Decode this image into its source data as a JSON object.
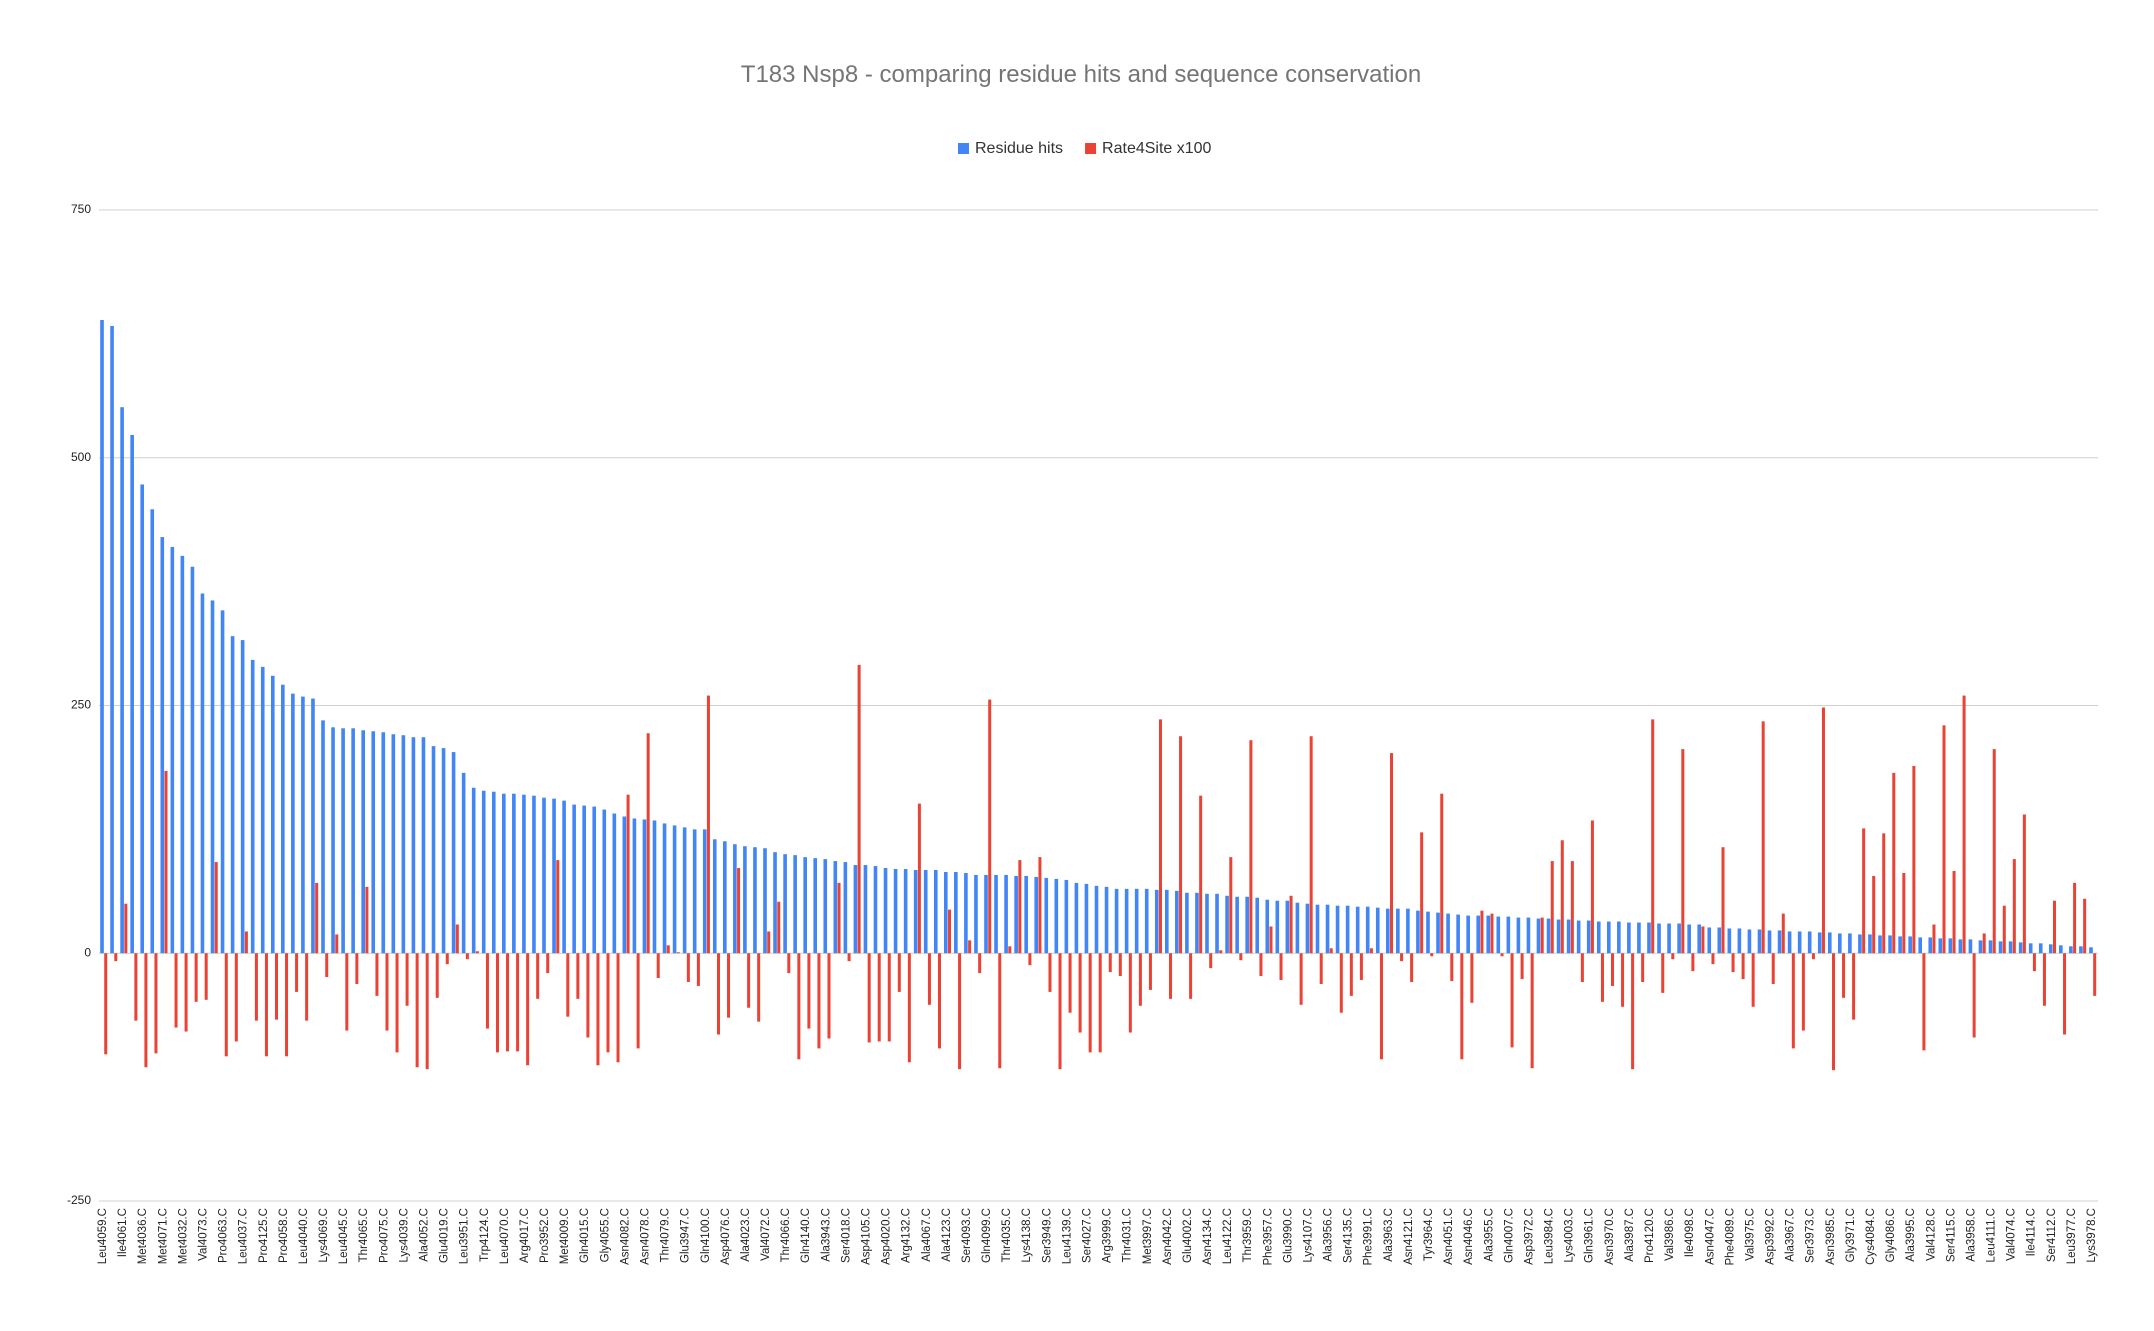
{
  "chart_data": {
    "type": "bar",
    "title": "T183 Nsp8 - comparing residue hits and sequence conservation",
    "categories": [
      "Leu4059.C",
      null,
      "Ile4061.C",
      null,
      "Met4036.C",
      null,
      "Met4071.C",
      null,
      "Met4032.C",
      null,
      "Val4073.C",
      null,
      "Pro4063.C",
      null,
      "Leu4037.C",
      null,
      "Pro4125.C",
      null,
      "Pro4058.C",
      null,
      "Leu4040.C",
      null,
      "Lys4069.C",
      null,
      "Leu4045.C",
      null,
      "Thr4065.C",
      null,
      "Pro4075.C",
      null,
      "Lys4039.C",
      null,
      "Ala4052.C",
      null,
      "Glu4019.C",
      null,
      "Leu3951.C",
      null,
      "Trp4124.C",
      null,
      "Leu4070.C",
      null,
      "Arg4017.C",
      null,
      "Pro3952.C",
      null,
      "Met4009.C",
      null,
      "Gln4015.C",
      null,
      "Gly4055.C",
      null,
      "Asn4082.C",
      null,
      "Asn4078.C",
      null,
      "Thr4079.C",
      null,
      "Glu3947.C",
      null,
      "Gln4100.C",
      null,
      "Asp4076.C",
      null,
      "Ala4023.C",
      null,
      "Val4072.C",
      null,
      "Thr4066.C",
      null,
      "Gln4140.C",
      null,
      "Ala3943.C",
      null,
      "Ser4018.C",
      null,
      "Asp4105.C",
      null,
      "Asp4020.C",
      null,
      "Arg4132.C",
      null,
      "Ala4067.C",
      null,
      "Ala4123.C",
      null,
      "Ser4093.C",
      null,
      "Gln4099.C",
      null,
      "Thr4035.C",
      null,
      "Lys4138.C",
      null,
      "Ser3949.C",
      null,
      "Leu4139.C",
      null,
      "Ser4027.C",
      null,
      "Arg3999.C",
      null,
      "Thr4031.C",
      null,
      "Met3997.C",
      null,
      "Asn4042.C",
      null,
      "Glu4002.C",
      null,
      "Asn4134.C",
      null,
      "Leu4122.C",
      null,
      "Thr3959.C",
      null,
      "Phe3957.C",
      null,
      "Glu3990.C",
      null,
      "Lys4107.C",
      null,
      "Ala3956.C",
      null,
      "Ser4135.C",
      null,
      "Phe3991.C",
      null,
      "Ala3963.C",
      null,
      "Asn4121.C",
      null,
      "Tyr3964.C",
      null,
      "Asn4051.C",
      null,
      "Asn4046.C",
      null,
      "Ala3955.C",
      null,
      "Gln4007.C",
      null,
      "Asp3972.C",
      null,
      "Leu3984.C",
      null,
      "Lys4003.C",
      null,
      "Gln3961.C",
      null,
      "Asn3970.C",
      null,
      "Ala3987.C",
      null,
      "Pro4120.C",
      null,
      "Val3986.C",
      null,
      "Ile4098.C",
      null,
      "Asn4047.C",
      null,
      "Phe4089.C",
      null,
      "Val3975.C",
      null,
      "Asp3992.C",
      null,
      "Ala3967.C",
      null,
      "Ser3973.C",
      null,
      "Asn3985.C",
      null,
      "Gly3971.C",
      null,
      "Cys4084.C",
      null,
      "Gly4086.C",
      null,
      "Ala3995.C",
      null,
      "Val4128.C",
      null,
      "Ser4115.C",
      null,
      "Ala3958.C",
      null,
      "Leu4111.C",
      null,
      "Val4074.C",
      null,
      "Ile4114.C",
      null,
      "Ser4112.C",
      null,
      "Leu3977.C",
      null,
      "Lys3978.C"
    ],
    "series": [
      {
        "name": "Residue hits",
        "color": "#4285f4",
        "values": [
          639,
          633,
          551,
          523,
          473,
          448,
          420,
          410,
          401,
          390,
          363,
          356,
          346,
          320,
          316,
          296,
          289,
          280,
          271,
          262,
          259,
          257,
          235,
          228,
          227,
          227,
          225,
          224,
          223,
          221,
          220,
          218,
          218,
          209,
          207,
          203,
          182,
          167,
          164,
          163,
          161,
          161,
          160,
          159,
          157,
          156,
          154,
          150,
          149,
          148,
          145,
          141,
          138,
          136,
          135,
          134,
          131,
          129,
          127,
          125,
          125,
          115,
          113,
          110,
          108,
          107,
          106,
          102,
          100,
          99,
          97,
          96,
          95,
          93,
          92,
          89,
          89,
          88,
          86,
          85,
          85,
          84,
          84,
          84,
          82,
          82,
          81,
          79,
          79,
          79,
          79,
          78,
          78,
          77,
          76,
          75,
          74,
          71,
          70,
          68,
          67,
          65,
          65,
          65,
          65,
          64,
          64,
          63,
          61,
          61,
          60,
          60,
          58,
          57,
          57,
          56,
          54,
          53,
          53,
          51,
          50,
          49,
          49,
          48,
          48,
          47,
          47,
          46,
          45,
          45,
          45,
          43,
          42,
          41,
          40,
          39,
          38,
          38,
          38,
          37,
          37,
          36,
          36,
          35,
          35,
          34,
          34,
          33,
          33,
          32,
          32,
          32,
          31,
          31,
          31,
          30,
          30,
          30,
          29,
          29,
          26,
          26,
          25,
          25,
          24,
          24,
          23,
          23,
          22,
          22,
          22,
          21,
          21,
          20,
          20,
          19,
          19,
          18,
          18,
          17,
          17,
          16,
          16,
          15,
          15,
          14,
          14,
          13,
          13,
          12,
          12,
          11,
          10,
          10,
          9,
          8,
          7,
          7,
          6
        ]
      },
      {
        "name": "Rate4Site x100",
        "color": "#ea4335",
        "values": [
          -102,
          -8,
          50,
          -68,
          -115,
          -101,
          184,
          -75,
          -79,
          -49,
          -47,
          92,
          -104,
          -89,
          22,
          -68,
          -104,
          -67,
          -104,
          -39,
          -68,
          71,
          -24,
          19,
          -78,
          -31,
          67,
          -43,
          -78,
          -100,
          -53,
          -115,
          -117,
          -45,
          -11,
          29,
          -6,
          2,
          -76,
          -100,
          -99,
          -99,
          -113,
          -46,
          -20,
          94,
          -64,
          -46,
          -85,
          -113,
          -100,
          -110,
          160,
          -96,
          222,
          -25,
          8,
          1,
          -29,
          -33,
          260,
          -82,
          -65,
          86,
          -55,
          -69,
          22,
          52,
          -20,
          -107,
          -76,
          -96,
          -86,
          71,
          -8,
          291,
          -90,
          -89,
          -89,
          -39,
          -110,
          151,
          -52,
          -96,
          44,
          -117,
          13,
          -20,
          256,
          -116,
          7,
          94,
          -12,
          97,
          -39,
          -117,
          -60,
          -80,
          -100,
          -100,
          -19,
          -23,
          -80,
          -53,
          -37,
          236,
          -46,
          219,
          -46,
          159,
          -15,
          3,
          97,
          -7,
          215,
          -23,
          27,
          -27,
          58,
          -52,
          219,
          -31,
          5,
          -60,
          -43,
          -27,
          5,
          -107,
          202,
          -8,
          -29,
          122,
          -3,
          161,
          -28,
          -107,
          -50,
          43,
          40,
          -3,
          -95,
          -26,
          -116,
          36,
          93,
          114,
          93,
          -29,
          134,
          -49,
          -33,
          -54,
          -117,
          -29,
          236,
          -40,
          -6,
          206,
          -18,
          27,
          -11,
          107,
          -19,
          -26,
          -54,
          234,
          -31,
          40,
          -96,
          -78,
          -6,
          248,
          -118,
          -45,
          -67,
          126,
          78,
          121,
          182,
          81,
          189,
          -98,
          29,
          230,
          83,
          260,
          -85,
          20,
          206,
          48,
          95,
          140,
          -18,
          -53,
          53,
          -82,
          71,
          55,
          -43
        ]
      }
    ],
    "ylim": [
      -250,
      750
    ],
    "yticks": [
      -250,
      0,
      250,
      500,
      750
    ],
    "grid": true,
    "legend": "top"
  }
}
